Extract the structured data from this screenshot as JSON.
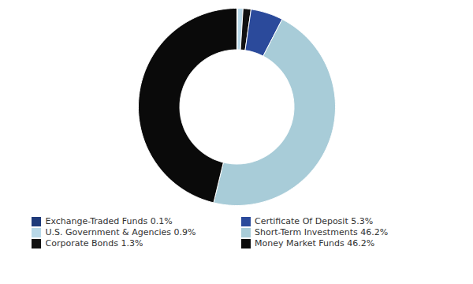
{
  "chart_data": {
    "type": "donut",
    "categories": [
      "Exchange-Traded Funds 0.1%",
      "U.S. Government & Agencies 0.9%",
      "Corporate Bonds 1.3%",
      "Certificate Of Deposit 5.3%",
      "Short-Term Investments 46.2%",
      "Money Market Funds 46.2%"
    ],
    "values": [
      0.1,
      0.9,
      1.3,
      5.3,
      46.2,
      46.2
    ],
    "colors": [
      "#1f3a7a",
      "#b8d8e8",
      "#111111",
      "#2b4a9b",
      "#a8ccd8",
      "#0a0a0a"
    ],
    "legend": "bottom"
  }
}
